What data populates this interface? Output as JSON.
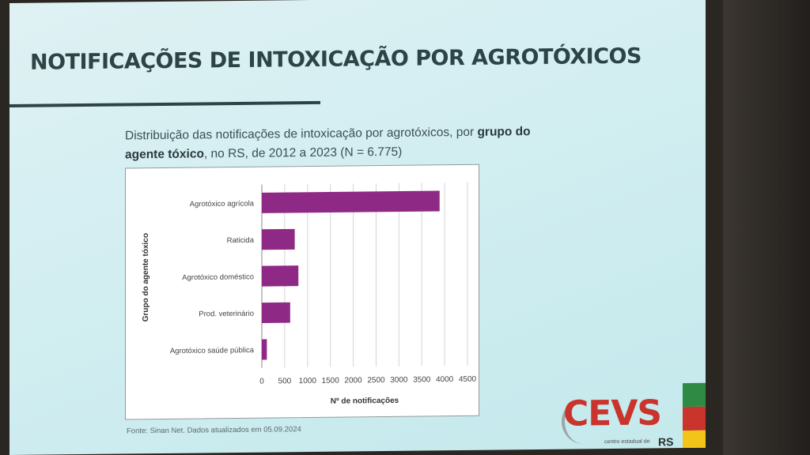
{
  "slide": {
    "title": "NOTIFICAÇÕES DE INTOXICAÇÃO POR AGROTÓXICOS",
    "subtitle_pre": "Distribuição das notificações de intoxicação por agrotóxicos, por ",
    "subtitle_bold": "grupo do agente tóxico",
    "subtitle_post": ", no RS, de 2012 a 2023 (N = 6.775)",
    "source": "Fonte: Sinan Net. Dados atualizados em 05.09.2024"
  },
  "logo": {
    "text": "CEVS",
    "sub": "centro estadual de",
    "sub2": "RS",
    "stripe_colors": [
      "#2f8a43",
      "#c9342c",
      "#f2c318"
    ]
  },
  "chart_data": {
    "type": "bar",
    "orientation": "horizontal",
    "categories": [
      "Agrotóxico agrícola",
      "Raticida",
      "Agrotóxico doméstico",
      "Prod. veterinário",
      "Agrotóxico saúde pública"
    ],
    "values": [
      3890,
      720,
      800,
      620,
      110
    ],
    "xlabel": "Nº de notificações",
    "ylabel": "Grupo do agente tóxico",
    "xlim": [
      0,
      4500
    ],
    "xticks": [
      0,
      500,
      1000,
      1500,
      2000,
      2500,
      3000,
      3500,
      4000,
      4500
    ],
    "bar_color": "#8e2a86",
    "grid": true
  }
}
